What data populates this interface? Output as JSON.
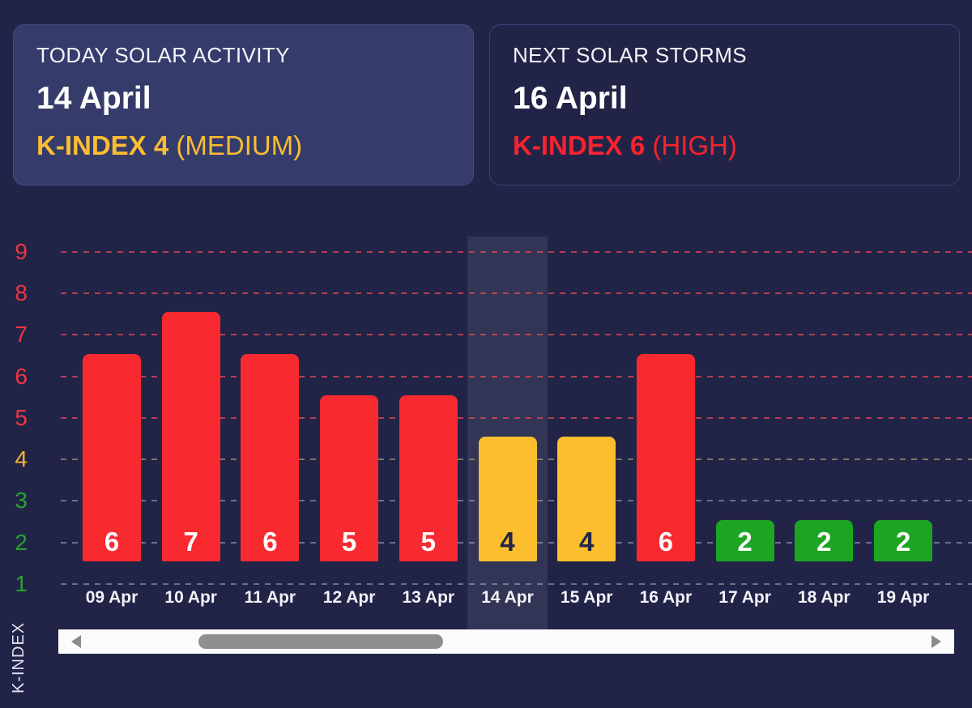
{
  "cards": {
    "today": {
      "title": "TODAY SOLAR ACTIVITY",
      "date": "14 April",
      "k_label": "K-INDEX 4",
      "k_level": "(MEDIUM)"
    },
    "next": {
      "title": "NEXT SOLAR STORMS",
      "date": "16 April",
      "k_label": "K-INDEX 6",
      "k_level": "(HIGH)"
    }
  },
  "chart_data": {
    "type": "bar",
    "title": "",
    "xlabel": "",
    "ylabel": "K-INDEX",
    "categories": [
      "09 Apr",
      "10 Apr",
      "11 Apr",
      "12 Apr",
      "13 Apr",
      "14 Apr",
      "15 Apr",
      "16 Apr",
      "17 Apr",
      "18 Apr",
      "19 Apr"
    ],
    "values": [
      6,
      7,
      6,
      5,
      5,
      4,
      4,
      6,
      2,
      2,
      2
    ],
    "severities": [
      "high",
      "high",
      "high",
      "high",
      "high",
      "medium",
      "medium",
      "high",
      "low",
      "low",
      "low"
    ],
    "highlighted_category": "14 Apr",
    "highlight_index": 5,
    "y_ticks": [
      9,
      8,
      7,
      6,
      5,
      4,
      3,
      2,
      1
    ],
    "ylim": [
      1,
      9
    ],
    "grid": true,
    "legend": false,
    "colors": {
      "bar": {
        "high": "#f8292f",
        "medium": "#fcbe2d",
        "low": "#1ca522"
      },
      "bar_label": {
        "high": "#ffffff",
        "medium": "#222749",
        "low": "#ffffff"
      },
      "tick": {
        "high": "#ee3540",
        "medium": "#fbb42d",
        "low": "#23a52b"
      },
      "grid": {
        "high": "rgba(242,72,86,0.70)",
        "medium": "rgba(205,180,125,0.55)",
        "low": "rgba(198,203,214,0.45)"
      },
      "highlight_band": "rgba(255,255,255,0.08)",
      "page_background": "#212447",
      "card_background": "#353c6c"
    }
  },
  "scrollbar": {
    "left_icon": "left-arrow-icon",
    "right_icon": "right-arrow-icon"
  }
}
